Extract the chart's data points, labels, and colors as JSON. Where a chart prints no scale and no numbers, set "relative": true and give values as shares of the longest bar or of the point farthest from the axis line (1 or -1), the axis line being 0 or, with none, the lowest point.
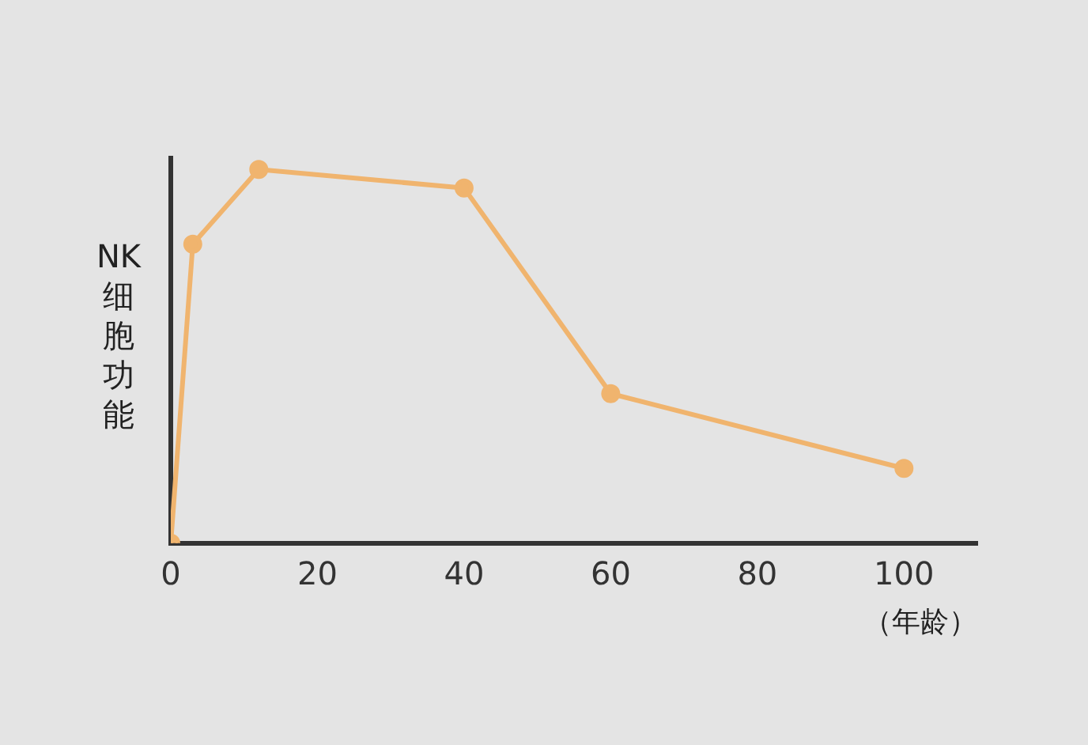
{
  "chart_data": {
    "type": "line",
    "relative": true,
    "ylabel": "NK细胞功能",
    "xlabel": "（年龄）",
    "x": [
      0,
      3,
      12,
      40,
      60,
      100
    ],
    "series": [
      {
        "color": "#f0b46e",
        "values": [
          0,
          0.8,
          1,
          0.95,
          0.4,
          0.2
        ]
      }
    ],
    "xlim": [
      0,
      110
    ],
    "xticks": [
      0,
      20,
      40,
      60,
      80,
      100
    ],
    "marker": "circle",
    "line_style": "solid",
    "grid": false,
    "legend": false
  }
}
